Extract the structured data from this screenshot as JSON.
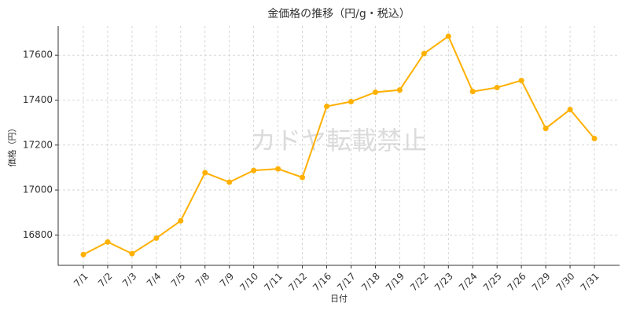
{
  "chart_data": {
    "type": "line",
    "title": "金価格の推移（円/g・税込）",
    "x_label": "日付",
    "y_label": "価格（円）",
    "watermark": "カドヤ転載禁止",
    "categories": [
      "7/1",
      "7/2",
      "7/3",
      "7/4",
      "7/5",
      "7/8",
      "7/9",
      "7/10",
      "7/11",
      "7/12",
      "7/16",
      "7/17",
      "7/18",
      "7/19",
      "7/22",
      "7/23",
      "7/24",
      "7/25",
      "7/26",
      "7/29",
      "7/30",
      "7/31"
    ],
    "values": [
      16713,
      16769,
      16717,
      16786,
      16863,
      17077,
      17035,
      17087,
      17094,
      17056,
      17372,
      17393,
      17435,
      17445,
      17607,
      17684,
      17438,
      17456,
      17487,
      17274,
      17358,
      17229
    ],
    "color": "#ffb000",
    "ylim": [
      16665,
      17730
    ],
    "yticks": [
      16800,
      17000,
      17200,
      17400,
      17600
    ],
    "grid": true
  }
}
